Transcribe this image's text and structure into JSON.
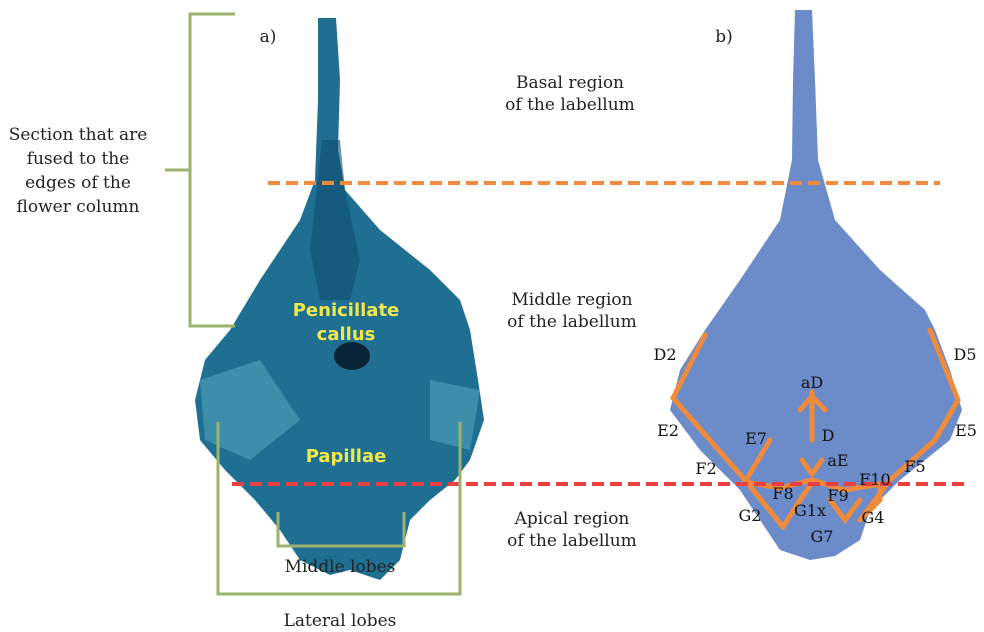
{
  "panels": [
    "a)",
    "b)"
  ],
  "regions": [
    {
      "lines": [
        "Basal region",
        "of the labellum"
      ]
    },
    {
      "lines": [
        "Middle region",
        "of the labellum"
      ]
    },
    {
      "lines": [
        "Apical region",
        "of the labellum"
      ]
    }
  ],
  "annotations": {
    "fused_section": [
      "Section  that are",
      "fused to the",
      "edges of the",
      "flower column"
    ],
    "callus": [
      "Penicillate",
      "callus"
    ],
    "papillae": "Papillae",
    "middle_lobes": "Middle lobes",
    "lateral_lobes": "Lateral lobes"
  },
  "landmarks": [
    "D2",
    "D5",
    "aD",
    "D",
    "E2",
    "E5",
    "E7",
    "aE",
    "F2",
    "F5",
    "F10",
    "F8",
    "F9",
    "G1x",
    "G2",
    "G4",
    "G7"
  ]
}
